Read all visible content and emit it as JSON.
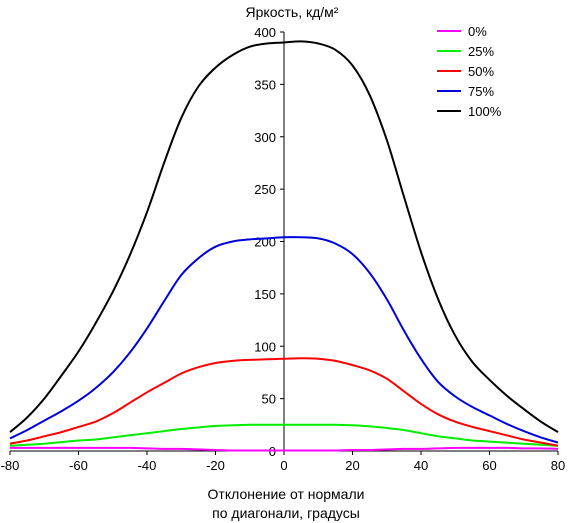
{
  "chart_data": {
    "type": "line",
    "ylabel": "Яркость, кд/м²",
    "xlabel_line1": "Отклонение от нормали",
    "xlabel_line2": "по диагонали, градусы",
    "xlim": [
      -80,
      80
    ],
    "ylim": [
      0,
      400
    ],
    "xticks": [
      -80,
      -60,
      -40,
      -20,
      0,
      20,
      40,
      60,
      80
    ],
    "yticks": [
      0,
      50,
      100,
      150,
      200,
      250,
      300,
      350,
      400
    ],
    "legend_position": "top-right",
    "grid": false,
    "x": [
      -80,
      -75,
      -70,
      -65,
      -60,
      -55,
      -50,
      -45,
      -40,
      -35,
      -30,
      -25,
      -20,
      -15,
      -10,
      -5,
      0,
      5,
      10,
      15,
      20,
      25,
      30,
      35,
      40,
      45,
      50,
      55,
      60,
      65,
      70,
      75,
      80
    ],
    "series": [
      {
        "name": "0%",
        "color": "#ff00ff",
        "values": [
          3,
          3,
          3,
          3,
          3,
          3,
          3,
          3,
          2.5,
          2,
          2,
          1.5,
          1,
          0.5,
          0.5,
          0.5,
          0.5,
          0.5,
          0.5,
          0.5,
          1,
          1,
          1.5,
          2,
          2,
          2.5,
          3,
          3,
          3,
          3,
          2.5,
          2.5,
          2
        ]
      },
      {
        "name": "25%",
        "color": "#00ee00",
        "values": [
          5,
          6,
          7,
          8.5,
          10,
          11,
          13,
          15,
          17,
          19,
          21,
          22.5,
          24,
          24.5,
          25,
          25,
          25,
          25,
          25,
          25,
          24.5,
          23.5,
          22,
          20,
          17,
          14,
          12,
          10,
          9,
          8,
          7,
          6,
          5
        ]
      },
      {
        "name": "50%",
        "color": "#ff0000",
        "values": [
          7,
          10,
          14,
          18,
          23,
          28,
          36,
          46,
          56,
          65,
          74,
          80,
          84,
          86,
          87,
          87.5,
          88,
          88.5,
          88,
          86,
          82,
          77,
          69,
          57,
          45,
          35,
          28,
          23,
          19,
          15,
          11,
          8,
          5
        ]
      },
      {
        "name": "75%",
        "color": "#0000dd",
        "values": [
          12,
          20,
          29,
          38,
          48,
          60,
          75,
          94,
          117,
          143,
          168,
          184,
          195,
          200,
          202,
          203,
          204,
          204,
          203,
          198,
          188,
          170,
          145,
          115,
          88,
          66,
          52,
          42,
          34,
          26,
          19,
          13,
          8
        ]
      },
      {
        "name": "100%",
        "color": "#000000",
        "values": [
          18,
          32,
          50,
          72,
          95,
          122,
          152,
          187,
          228,
          275,
          318,
          348,
          366,
          378,
          386,
          389,
          390,
          391,
          389,
          383,
          368,
          340,
          297,
          243,
          190,
          145,
          110,
          85,
          68,
          53,
          40,
          28,
          18
        ]
      }
    ]
  }
}
